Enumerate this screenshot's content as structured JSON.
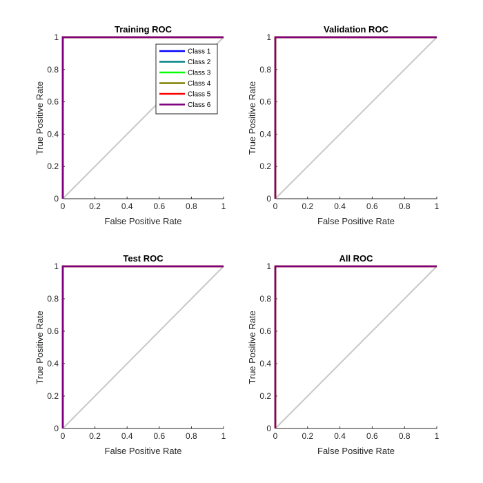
{
  "chart_data": [
    {
      "type": "line",
      "title": "Training ROC",
      "xlabel": "False Positive Rate",
      "ylabel": "True Positive Rate",
      "xlim": [
        0,
        1
      ],
      "ylim": [
        0,
        1
      ],
      "xticks": [
        "0",
        "0.2",
        "0.4",
        "0.6",
        "0.8",
        "1"
      ],
      "yticks": [
        "0",
        "0.2",
        "0.4",
        "0.6",
        "0.8",
        "1"
      ],
      "grid": false,
      "legend": "top-right",
      "reference_line": {
        "x": [
          0,
          1
        ],
        "y": [
          0,
          1
        ],
        "color": "#c8c8c8"
      },
      "series": [
        {
          "name": "Class 1",
          "color": "#0000ff",
          "x": [
            0,
            0,
            1
          ],
          "y": [
            0,
            1,
            1
          ]
        },
        {
          "name": "Class 2",
          "color": "#008080",
          "x": [
            0,
            0,
            1
          ],
          "y": [
            0,
            1,
            1
          ]
        },
        {
          "name": "Class 3",
          "color": "#00ff00",
          "x": [
            0,
            0,
            1
          ],
          "y": [
            0,
            1,
            1
          ]
        },
        {
          "name": "Class 4",
          "color": "#808000",
          "x": [
            0,
            0,
            1
          ],
          "y": [
            0,
            1,
            1
          ]
        },
        {
          "name": "Class 5",
          "color": "#ff0000",
          "x": [
            0,
            0,
            1
          ],
          "y": [
            0,
            1,
            1
          ]
        },
        {
          "name": "Class 6",
          "color": "#800080",
          "x": [
            0,
            0,
            1
          ],
          "y": [
            0,
            1,
            1
          ]
        }
      ]
    },
    {
      "type": "line",
      "title": "Validation ROC",
      "xlabel": "False Positive Rate",
      "ylabel": "True Positive Rate",
      "xlim": [
        0,
        1
      ],
      "ylim": [
        0,
        1
      ],
      "xticks": [
        "0",
        "0.2",
        "0.4",
        "0.6",
        "0.8",
        "1"
      ],
      "yticks": [
        "0",
        "0.2",
        "0.4",
        "0.6",
        "0.8",
        "1"
      ],
      "grid": false,
      "reference_line": {
        "x": [
          0,
          1
        ],
        "y": [
          0,
          1
        ],
        "color": "#c8c8c8"
      },
      "series": [
        {
          "color": "#0000ff",
          "x": [
            0,
            0,
            1
          ],
          "y": [
            0,
            1,
            1
          ]
        },
        {
          "color": "#008080",
          "x": [
            0,
            0,
            1
          ],
          "y": [
            0,
            1,
            1
          ]
        },
        {
          "color": "#00ff00",
          "x": [
            0,
            0,
            1
          ],
          "y": [
            0,
            1,
            1
          ]
        },
        {
          "color": "#808000",
          "x": [
            0,
            0,
            1
          ],
          "y": [
            0,
            1,
            1
          ]
        },
        {
          "color": "#ff0000",
          "x": [
            0,
            0,
            1
          ],
          "y": [
            0,
            1,
            1
          ]
        },
        {
          "color": "#800080",
          "x": [
            0,
            0,
            1
          ],
          "y": [
            0,
            1,
            1
          ]
        }
      ]
    },
    {
      "type": "line",
      "title": "Test ROC",
      "xlabel": "False Positive Rate",
      "ylabel": "True Positive Rate",
      "xlim": [
        0,
        1
      ],
      "ylim": [
        0,
        1
      ],
      "xticks": [
        "0",
        "0.2",
        "0.4",
        "0.6",
        "0.8",
        "1"
      ],
      "yticks": [
        "0",
        "0.2",
        "0.4",
        "0.6",
        "0.8",
        "1"
      ],
      "grid": false,
      "reference_line": {
        "x": [
          0,
          1
        ],
        "y": [
          0,
          1
        ],
        "color": "#c8c8c8"
      },
      "series": [
        {
          "color": "#0000ff",
          "x": [
            0,
            0,
            1
          ],
          "y": [
            0,
            1,
            1
          ]
        },
        {
          "color": "#008080",
          "x": [
            0,
            0,
            1
          ],
          "y": [
            0,
            1,
            1
          ]
        },
        {
          "color": "#00ff00",
          "x": [
            0,
            0,
            1
          ],
          "y": [
            0,
            1,
            1
          ]
        },
        {
          "color": "#808000",
          "x": [
            0,
            0,
            1
          ],
          "y": [
            0,
            1,
            1
          ]
        },
        {
          "color": "#ff0000",
          "x": [
            0,
            0,
            1
          ],
          "y": [
            0,
            1,
            1
          ]
        },
        {
          "color": "#800080",
          "x": [
            0,
            0,
            1
          ],
          "y": [
            0,
            1,
            1
          ]
        }
      ]
    },
    {
      "type": "line",
      "title": "All ROC",
      "xlabel": "False Positive Rate",
      "ylabel": "True Positive Rate",
      "xlim": [
        0,
        1
      ],
      "ylim": [
        0,
        1
      ],
      "xticks": [
        "0",
        "0.2",
        "0.4",
        "0.6",
        "0.8",
        "1"
      ],
      "yticks": [
        "0",
        "0.2",
        "0.4",
        "0.6",
        "0.8",
        "1"
      ],
      "grid": false,
      "reference_line": {
        "x": [
          0,
          1
        ],
        "y": [
          0,
          1
        ],
        "color": "#c8c8c8"
      },
      "series": [
        {
          "color": "#0000ff",
          "x": [
            0,
            0,
            1
          ],
          "y": [
            0,
            1,
            1
          ]
        },
        {
          "color": "#008080",
          "x": [
            0,
            0,
            1
          ],
          "y": [
            0,
            1,
            1
          ]
        },
        {
          "color": "#00ff00",
          "x": [
            0,
            0,
            1
          ],
          "y": [
            0,
            1,
            1
          ]
        },
        {
          "color": "#808000",
          "x": [
            0,
            0,
            1
          ],
          "y": [
            0,
            1,
            1
          ]
        },
        {
          "color": "#ff0000",
          "x": [
            0,
            0,
            1
          ],
          "y": [
            0,
            1,
            1
          ]
        },
        {
          "color": "#800080",
          "x": [
            0,
            0,
            1
          ],
          "y": [
            0,
            1,
            1
          ]
        }
      ]
    }
  ]
}
